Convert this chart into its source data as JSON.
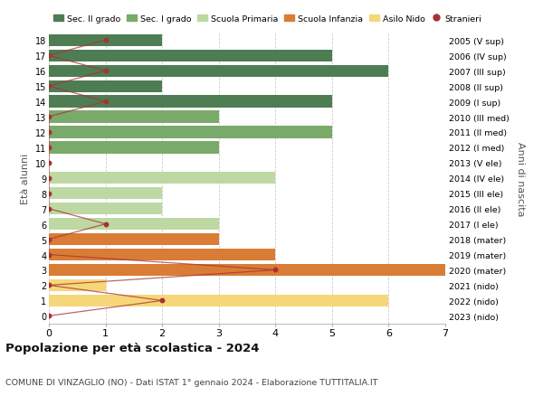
{
  "ages": [
    18,
    17,
    16,
    15,
    14,
    13,
    12,
    11,
    10,
    9,
    8,
    7,
    6,
    5,
    4,
    3,
    2,
    1,
    0
  ],
  "years": [
    "2005 (V sup)",
    "2006 (IV sup)",
    "2007 (III sup)",
    "2008 (II sup)",
    "2009 (I sup)",
    "2010 (III med)",
    "2011 (II med)",
    "2012 (I med)",
    "2013 (V ele)",
    "2014 (IV ele)",
    "2015 (III ele)",
    "2016 (II ele)",
    "2017 (I ele)",
    "2018 (mater)",
    "2019 (mater)",
    "2020 (mater)",
    "2021 (nido)",
    "2022 (nido)",
    "2023 (nido)"
  ],
  "bar_values": [
    2,
    5,
    6,
    2,
    5,
    3,
    5,
    3,
    0,
    4,
    2,
    2,
    3,
    3,
    4,
    7,
    1,
    6,
    0
  ],
  "bar_colors": [
    "#4e7d54",
    "#4e7d54",
    "#4e7d54",
    "#4e7d54",
    "#4e7d54",
    "#7aaa6a",
    "#7aaa6a",
    "#7aaa6a",
    "#bdd8a3",
    "#bdd8a3",
    "#bdd8a3",
    "#bdd8a3",
    "#bdd8a3",
    "#d97c35",
    "#d97c35",
    "#d97c35",
    "#f5d77a",
    "#f5d77a",
    "#f5d77a"
  ],
  "stranieri_values": [
    1,
    0,
    1,
    0,
    1,
    0,
    0,
    0,
    0,
    0,
    0,
    0,
    1,
    0,
    0,
    4,
    0,
    2,
    0
  ],
  "stranieri_color": "#a83232",
  "legend_labels": [
    "Sec. II grado",
    "Sec. I grado",
    "Scuola Primaria",
    "Scuola Infanzia",
    "Asilo Nido",
    "Stranieri"
  ],
  "legend_colors": [
    "#4e7d54",
    "#7aaa6a",
    "#bdd8a3",
    "#d97c35",
    "#f5d77a",
    "#a83232"
  ],
  "title": "Popolazione per età scolastica - 2024",
  "subtitle": "COMUNE DI VINZAGLIO (NO) - Dati ISTAT 1° gennaio 2024 - Elaborazione TUTTITALIA.IT",
  "ylabel": "Età alunni",
  "ylabel2": "Anni di nascita",
  "background_color": "#ffffff",
  "grid_color": "#cccccc"
}
